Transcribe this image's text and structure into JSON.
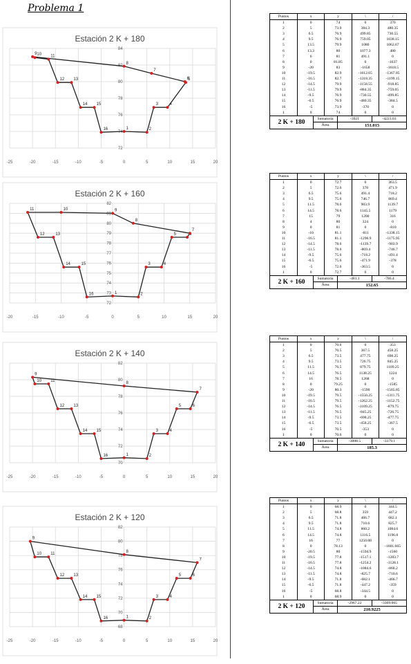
{
  "page_title": "Problema 1",
  "colors": {
    "line": "#222222",
    "point": "#d42020",
    "grid": "#d9d9d9"
  },
  "chart_data": [
    {
      "type": "line",
      "title": "Estación 2 K + 180",
      "xlim": [
        -25,
        20
      ],
      "ylim": [
        72,
        84
      ],
      "xticks": [
        -25,
        -20,
        -15,
        -10,
        -5,
        0,
        5,
        10,
        15,
        20
      ],
      "yticks": [
        72,
        74,
        76,
        78,
        80,
        82,
        84
      ],
      "points": [
        {
          "label": "1",
          "x": 0,
          "y": 74
        },
        {
          "label": "2",
          "x": 5,
          "y": 73.9
        },
        {
          "label": "3",
          "x": 6.5,
          "y": 76.9
        },
        {
          "label": "4",
          "x": 9.5,
          "y": 76.9
        },
        {
          "label": "5",
          "x": 13.5,
          "y": 79.9
        },
        {
          "label": "6",
          "x": 13.3,
          "y": 80
        },
        {
          "label": "7",
          "x": 6,
          "y": 81
        },
        {
          "label": "8",
          "x": 0,
          "y": 81.85
        },
        {
          "label": "9",
          "x": -20,
          "y": 83
        },
        {
          "label": "10",
          "x": -19.5,
          "y": 82.9
        },
        {
          "label": "11",
          "x": -16.5,
          "y": 82.7
        },
        {
          "label": "12",
          "x": -14.5,
          "y": 79.9
        },
        {
          "label": "13",
          "x": -11.5,
          "y": 79.9
        },
        {
          "label": "14",
          "x": -9.5,
          "y": 76.9
        },
        {
          "label": "15",
          "x": -6.5,
          "y": 76.9
        },
        {
          "label": "16",
          "x": -5,
          "y": 73.9
        }
      ]
    },
    {
      "type": "line",
      "title": "Estación 2 K + 160",
      "xlim": [
        -20,
        20
      ],
      "ylim": [
        72,
        82
      ],
      "xticks": [
        -20,
        -15,
        -10,
        -5,
        0,
        5,
        10,
        15,
        20
      ],
      "yticks": [
        72,
        73,
        74,
        75,
        76,
        77,
        78,
        79,
        80,
        81,
        82
      ],
      "points": [
        {
          "label": "1",
          "x": 0,
          "y": 72.7
        },
        {
          "label": "2",
          "x": 5,
          "y": 72.6
        },
        {
          "label": "3",
          "x": 6.5,
          "y": 75.6
        },
        {
          "label": "4",
          "x": 9.5,
          "y": 75.6
        },
        {
          "label": "5",
          "x": 11.5,
          "y": 78.6
        },
        {
          "label": "6",
          "x": 14.5,
          "y": 78.6
        },
        {
          "label": "7",
          "x": 15,
          "y": 79
        },
        {
          "label": "8",
          "x": 4,
          "y": 80
        },
        {
          "label": "9",
          "x": 0,
          "y": 81
        },
        {
          "label": "10",
          "x": -10,
          "y": 81.1
        },
        {
          "label": "11",
          "x": -16.5,
          "y": 81.1
        },
        {
          "label": "12",
          "x": -14.5,
          "y": 78.6
        },
        {
          "label": "13",
          "x": -11.5,
          "y": 78.6
        },
        {
          "label": "14",
          "x": -9.5,
          "y": 75.6
        },
        {
          "label": "15",
          "x": -6.5,
          "y": 75.6
        },
        {
          "label": "16",
          "x": -5,
          "y": 72.6
        }
      ]
    },
    {
      "type": "line",
      "title": "Estación 2 K + 140",
      "xlim": [
        -25,
        20
      ],
      "ylim": [
        70,
        82
      ],
      "xticks": [
        -25,
        -20,
        -15,
        -10,
        -5,
        0,
        5,
        10,
        15,
        20
      ],
      "yticks": [
        70,
        72,
        74,
        76,
        78,
        80,
        82
      ],
      "points": [
        {
          "label": "1",
          "x": 0,
          "y": 70.6
        },
        {
          "label": "2",
          "x": 5,
          "y": 70.5
        },
        {
          "label": "3",
          "x": 6.5,
          "y": 73.5
        },
        {
          "label": "4",
          "x": 9.5,
          "y": 73.5
        },
        {
          "label": "5",
          "x": 11.5,
          "y": 76.5
        },
        {
          "label": "6",
          "x": 14.5,
          "y": 76.5
        },
        {
          "label": "7",
          "x": 16,
          "y": 78.5
        },
        {
          "label": "8",
          "x": 0,
          "y": 79.25
        },
        {
          "label": "9",
          "x": -20,
          "y": 80.3
        },
        {
          "label": "10",
          "x": -19.5,
          "y": 79.5
        },
        {
          "label": "11",
          "x": -16.5,
          "y": 79.5
        },
        {
          "label": "12",
          "x": -14.5,
          "y": 76.5
        },
        {
          "label": "13",
          "x": -11.5,
          "y": 76.5
        },
        {
          "label": "14",
          "x": -9.5,
          "y": 73.5
        },
        {
          "label": "15",
          "x": -6.5,
          "y": 73.5
        },
        {
          "label": "16",
          "x": -5,
          "y": 70.5
        }
      ]
    },
    {
      "type": "line",
      "title": "Estación 2 K + 120",
      "xlim": [
        -25,
        20
      ],
      "ylim": [
        68,
        82
      ],
      "xticks": [
        -25,
        -20,
        -15,
        -10,
        -5,
        0,
        5,
        10,
        15,
        20
      ],
      "yticks": [
        68,
        70,
        72,
        74,
        76,
        78,
        80,
        82
      ],
      "points": [
        {
          "label": "1",
          "x": 0,
          "y": 68.9
        },
        {
          "label": "2",
          "x": 5,
          "y": 68.8
        },
        {
          "label": "3",
          "x": 6.5,
          "y": 71.8
        },
        {
          "label": "4",
          "x": 9.5,
          "y": 71.8
        },
        {
          "label": "5",
          "x": 11.5,
          "y": 74.8
        },
        {
          "label": "6",
          "x": 14.5,
          "y": 74.8
        },
        {
          "label": "7",
          "x": 16,
          "y": 77
        },
        {
          "label": "8",
          "x": 0,
          "y": 78.13
        },
        {
          "label": "9",
          "x": -20.5,
          "y": 80
        },
        {
          "label": "10",
          "x": -19.5,
          "y": 77.8
        },
        {
          "label": "11",
          "x": -16.5,
          "y": 77.8
        },
        {
          "label": "12",
          "x": -14.5,
          "y": 74.8
        },
        {
          "label": "13",
          "x": -11.5,
          "y": 74.8
        },
        {
          "label": "14",
          "x": -9.5,
          "y": 71.8
        },
        {
          "label": "15",
          "x": -6.5,
          "y": 71.8
        },
        {
          "label": "16",
          "x": -5,
          "y": 68.8
        }
      ]
    }
  ],
  "tables": [
    {
      "headers": [
        "Puntos",
        "x",
        "y",
        "\\",
        "/"
      ],
      "rows": [
        [
          "1",
          "0",
          "74",
          "0",
          "370"
        ],
        [
          "2",
          "5",
          "73.9",
          "384.3",
          "480.35"
        ],
        [
          "3",
          "6.5",
          "76.9",
          "499.85",
          "730.55"
        ],
        [
          "4",
          "9.5",
          "76.9",
          "759.05",
          "1038.15"
        ],
        [
          "5",
          "13.5",
          "79.9",
          "1080",
          "1062.67"
        ],
        [
          "6",
          "13.3",
          "80",
          "1077.3",
          "480"
        ],
        [
          "7",
          "6",
          "81",
          "491.1",
          "0"
        ],
        [
          "8",
          "0",
          "81.85",
          "0",
          "-1637"
        ],
        [
          "9",
          "-20",
          "83",
          "-1658",
          "-1618.5"
        ],
        [
          "10",
          "-19.5",
          "82.9",
          "-1612.65",
          "-1367.85"
        ],
        [
          "11",
          "-16.5",
          "82.7",
          "-1318.35",
          "-1199.15"
        ],
        [
          "12",
          "-14.5",
          "79.9",
          "-1158.55",
          "-918.85"
        ],
        [
          "13",
          "-11.5",
          "79.9",
          "-884.35",
          "-759.05"
        ],
        [
          "14",
          "-9.5",
          "76.9",
          "-730.55",
          "-499.85"
        ],
        [
          "15",
          "-6.5",
          "76.9",
          "-480.35",
          "-384.5"
        ],
        [
          "16",
          "-5",
          "73.9",
          "-370",
          "0"
        ],
        [
          "1",
          "0",
          "74",
          "0",
          "0"
        ]
      ],
      "name": "2 K + 180",
      "sum_label": "Sumatoria",
      "area_label": "Área",
      "sum1": "-3921",
      "sum2": "-4223.03",
      "area": "151.015"
    },
    {
      "headers": [
        "Puntos",
        "x",
        "y",
        "\\",
        "/"
      ],
      "rows": [
        [
          "1",
          "0",
          "72.7",
          "0",
          "363.5"
        ],
        [
          "2",
          "5",
          "72.6",
          "378",
          "471.9"
        ],
        [
          "3",
          "6.5",
          "75.6",
          "491.4",
          "718.2"
        ],
        [
          "4",
          "9.5",
          "75.6",
          "746.7",
          "869.4"
        ],
        [
          "5",
          "11.5",
          "78.6",
          "903.9",
          "1139.7"
        ],
        [
          "6",
          "14.5",
          "78.6",
          "1145.5",
          "1179"
        ],
        [
          "7",
          "15",
          "79",
          "1200",
          "316"
        ],
        [
          "8",
          "4",
          "80",
          "324",
          "0"
        ],
        [
          "9",
          "0",
          "81",
          "0",
          "-810"
        ],
        [
          "10",
          "-10",
          "81.1",
          "-811",
          "-1338.15"
        ],
        [
          "11",
          "-16.5",
          "81.1",
          "-1296.9",
          "-1175.95"
        ],
        [
          "12",
          "-14.5",
          "78.6",
          "-1139.7",
          "-903.9"
        ],
        [
          "13",
          "-11.5",
          "78.6",
          "-869.4",
          "-746.7"
        ],
        [
          "14",
          "-9.5",
          "75.6",
          "-718.2",
          "-491.4"
        ],
        [
          "15",
          "-6.5",
          "75.6",
          "-471.9",
          "-378"
        ],
        [
          "16",
          "-5",
          "72.6",
          "-363.5",
          "0"
        ],
        [
          "1",
          "0",
          "72.7",
          "0",
          "0"
        ]
      ],
      "name": "2 K + 160",
      "sum_label": "Sumatoria",
      "area_label": "Área",
      "sum1": "-481.1",
      "sum2": "-786.4",
      "area": "152.65"
    },
    {
      "headers": [
        "Puntos",
        "x",
        "y",
        "\\",
        "/"
      ],
      "rows": [
        [
          "1",
          "0",
          "70.6",
          "0",
          "353"
        ],
        [
          "2",
          "5",
          "70.5",
          "367.5",
          "458.25"
        ],
        [
          "3",
          "6.5",
          "73.5",
          "477.75",
          "698.25"
        ],
        [
          "4",
          "9.5",
          "73.5",
          "726.75",
          "845.25"
        ],
        [
          "5",
          "11.5",
          "76.5",
          "879.75",
          "1109.25"
        ],
        [
          "6",
          "14.5",
          "76.5",
          "1138.25",
          "1224"
        ],
        [
          "7",
          "16",
          "78.5",
          "1268",
          "0"
        ],
        [
          "8",
          "0",
          "79.25",
          "0",
          "-1585"
        ],
        [
          "9",
          "-20",
          "80.3",
          "-1590",
          "-1565.85"
        ],
        [
          "10",
          "-19.5",
          "79.5",
          "-1550.25",
          "-1311.75"
        ],
        [
          "11",
          "-16.5",
          "79.5",
          "-1262.25",
          "-1152.75"
        ],
        [
          "12",
          "-14.5",
          "76.5",
          "-1109.25",
          "-879.75"
        ],
        [
          "13",
          "-11.5",
          "76.5",
          "-845.25",
          "-726.75"
        ],
        [
          "14",
          "-9.5",
          "73.5",
          "-698.25",
          "-477.75"
        ],
        [
          "15",
          "-6.5",
          "73.5",
          "-458.25",
          "-367.5"
        ],
        [
          "16",
          "-5",
          "70.5",
          "-353",
          "0"
        ],
        [
          "1",
          "0",
          "70.6",
          "0",
          "0"
        ]
      ],
      "name": "2 K + 140",
      "sum_label": "Sumatoria",
      "area_label": "Área",
      "sum1": "-3008.5",
      "sum2": "-3379.1",
      "area": "185.3"
    },
    {
      "headers": [
        "Puntos",
        "x",
        "y",
        "\\",
        "/"
      ],
      "rows": [
        [
          "1",
          "0",
          "68.9",
          "0",
          "344.5"
        ],
        [
          "2",
          "5",
          "68.8",
          "359",
          "447.2"
        ],
        [
          "3",
          "6.5",
          "71.8",
          "466.7",
          "682.1"
        ],
        [
          "4",
          "9.5",
          "71.8",
          "710.6",
          "825.7"
        ],
        [
          "5",
          "11.5",
          "74.8",
          "860.2",
          "1084.6"
        ],
        [
          "6",
          "14.5",
          "74.8",
          "1116.5",
          "1196.8"
        ],
        [
          "7",
          "16",
          "77",
          "1250.08",
          "0"
        ],
        [
          "8",
          "0",
          "78.13",
          "0",
          "-1601.665"
        ],
        [
          "9",
          "-20.5",
          "80",
          "-1594.9",
          "-1560"
        ],
        [
          "10",
          "-19.5",
          "77.8",
          "-1517.1",
          "-1283.7"
        ],
        [
          "11",
          "-16.5",
          "77.8",
          "-1254.2",
          "-1128.1"
        ],
        [
          "12",
          "-14.5",
          "74.8",
          "-1084.6",
          "-860.2"
        ],
        [
          "13",
          "-11.5",
          "74.8",
          "-825.7",
          "-710.6"
        ],
        [
          "14",
          "-9.5",
          "71.8",
          "-682.1",
          "-466.7"
        ],
        [
          "15",
          "-6.5",
          "71.8",
          "-447.2",
          "-359"
        ],
        [
          "16",
          "-5",
          "68.8",
          "-344.5",
          "0"
        ],
        [
          "1",
          "0",
          "68.9",
          "0",
          "0"
        ]
      ],
      "name": "2 K + 120",
      "sum_label": "Sumatoria",
      "area_label": "Área",
      "sum1": "-2967.22",
      "sum2": "-3309.065",
      "area": "210.9225"
    }
  ]
}
